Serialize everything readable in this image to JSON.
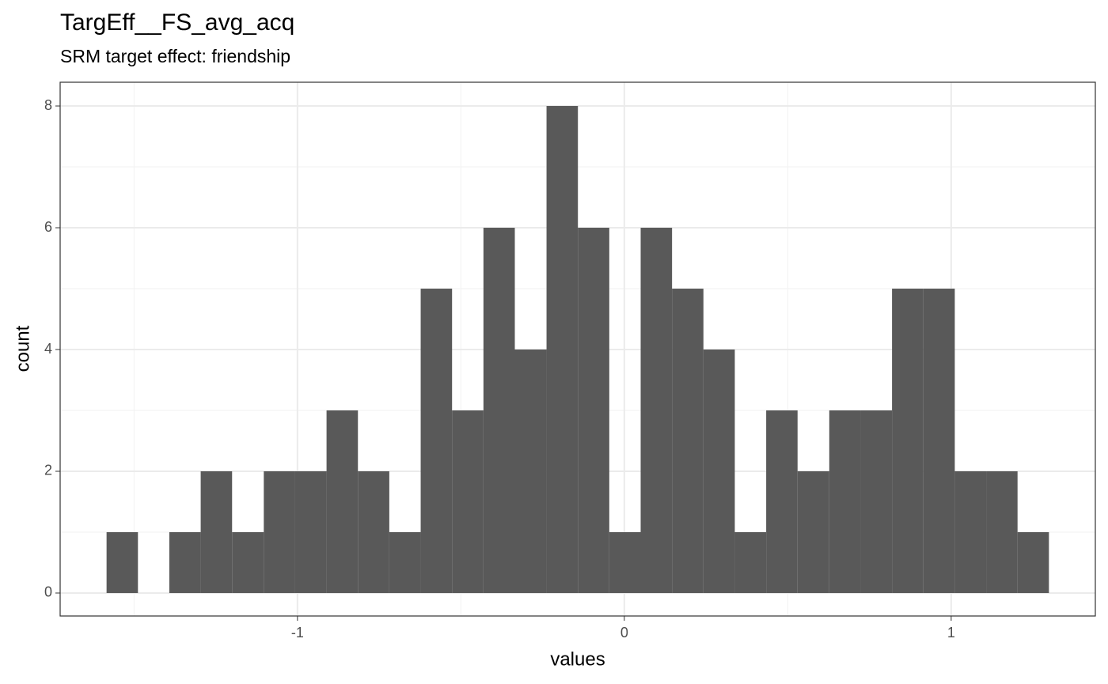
{
  "chart_data": {
    "type": "histogram",
    "title": "TargEff__FS_avg_acq",
    "subtitle": "SRM target effect: friendship",
    "x_label": "values",
    "y_label": "count",
    "bins": [
      -1.584,
      -1.488,
      -1.392,
      -1.296,
      -1.2,
      -1.103,
      -1.007,
      -0.911,
      -0.815,
      -0.719,
      -0.623,
      -0.527,
      -0.431,
      -0.335,
      -0.238,
      -0.142,
      -0.046,
      0.05,
      0.146,
      0.242,
      0.338,
      0.434,
      0.53,
      0.627,
      0.723,
      0.819,
      0.915,
      1.011,
      1.107,
      1.203,
      1.299
    ],
    "counts": [
      1,
      0,
      1,
      2,
      1,
      2,
      2,
      3,
      2,
      1,
      5,
      3,
      6,
      4,
      8,
      6,
      1,
      6,
      5,
      4,
      1,
      3,
      2,
      3,
      3,
      5,
      5,
      2,
      2,
      1
    ],
    "color": "#595959",
    "xlim": [
      -1.726,
      1.441
    ],
    "xticks": [
      -1,
      0,
      1
    ],
    "ylim": [
      -0.377,
      8.39
    ],
    "yticks": [
      0,
      2,
      4,
      6,
      8
    ],
    "grid": true
  }
}
